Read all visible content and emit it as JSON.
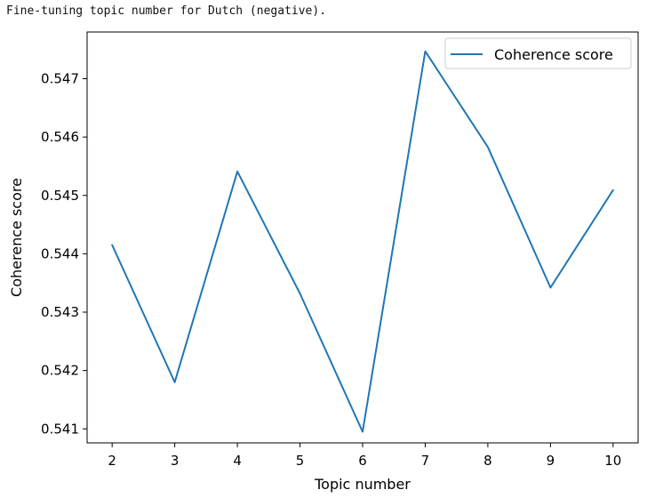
{
  "notebook_output": {
    "text": "Fine-tuning topic number for Dutch (negative)."
  },
  "chart_data": {
    "type": "line",
    "title": "",
    "xlabel": "Topic number",
    "ylabel": "Coherence score",
    "x": [
      2,
      3,
      4,
      5,
      6,
      7,
      8,
      9,
      10
    ],
    "series": [
      {
        "name": "Coherence score",
        "color": "#1f77b4",
        "values": [
          0.54415,
          0.5418,
          0.54541,
          0.54332,
          0.54095,
          0.54747,
          0.54583,
          0.54342,
          0.54509
        ]
      }
    ],
    "xticks": [
      2,
      3,
      4,
      5,
      6,
      7,
      8,
      9,
      10
    ],
    "yticks": [
      0.541,
      0.542,
      0.543,
      0.544,
      0.545,
      0.546,
      0.547
    ],
    "ytick_labels": [
      "0.541",
      "0.542",
      "0.543",
      "0.544",
      "0.545",
      "0.546",
      "0.547"
    ],
    "xlim": [
      1.6,
      10.4
    ],
    "ylim": [
      0.54076,
      0.5478
    ],
    "grid": false,
    "legend": {
      "position": "upper right",
      "entries": [
        "Coherence score"
      ]
    }
  }
}
